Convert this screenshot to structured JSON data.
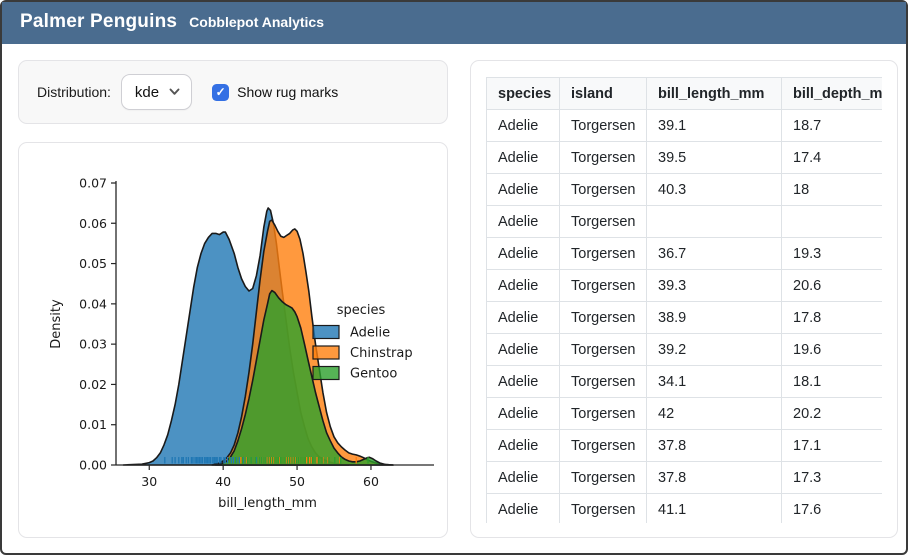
{
  "header": {
    "title": "Palmer Penguins",
    "subtitle": "Cobblepot Analytics"
  },
  "controls": {
    "distribution_label": "Distribution:",
    "distribution_value": "kde",
    "rug_label": "Show rug marks",
    "rug_checked": true,
    "checkbox_glyph": "✓"
  },
  "colors": {
    "header_bg": "#4a6c8f",
    "accent": "#3470e4"
  },
  "table": {
    "columns": [
      "species",
      "island",
      "bill_length_mm",
      "bill_depth_mm"
    ],
    "rows": [
      [
        "Adelie",
        "Torgersen",
        "39.1",
        "18.7"
      ],
      [
        "Adelie",
        "Torgersen",
        "39.5",
        "17.4"
      ],
      [
        "Adelie",
        "Torgersen",
        "40.3",
        "18"
      ],
      [
        "Adelie",
        "Torgersen",
        "",
        ""
      ],
      [
        "Adelie",
        "Torgersen",
        "36.7",
        "19.3"
      ],
      [
        "Adelie",
        "Torgersen",
        "39.3",
        "20.6"
      ],
      [
        "Adelie",
        "Torgersen",
        "38.9",
        "17.8"
      ],
      [
        "Adelie",
        "Torgersen",
        "39.2",
        "19.6"
      ],
      [
        "Adelie",
        "Torgersen",
        "34.1",
        "18.1"
      ],
      [
        "Adelie",
        "Torgersen",
        "42",
        "20.2"
      ],
      [
        "Adelie",
        "Torgersen",
        "37.8",
        "17.1"
      ],
      [
        "Adelie",
        "Torgersen",
        "37.8",
        "17.3"
      ],
      [
        "Adelie",
        "Torgersen",
        "41.1",
        "17.6"
      ]
    ]
  },
  "chart_data": {
    "type": "area",
    "title": "",
    "xlabel": "bill_length_mm",
    "ylabel": "Density",
    "xlim": [
      25.5,
      66.5
    ],
    "ylim": [
      0,
      0.07
    ],
    "xticks": [
      30,
      40,
      50,
      60
    ],
    "yticks": [
      0,
      0.01,
      0.02,
      0.03,
      0.04,
      0.05,
      0.06,
      0.07
    ],
    "grid": false,
    "legend_title": "species",
    "legend_position": "center-right",
    "fill_alpha": 0.8,
    "edge_color": "#1a1a1a",
    "series": [
      {
        "name": "Adelie",
        "color": "#1f77b4",
        "points": [
          [
            26.5,
            0
          ],
          [
            29,
            0.0002
          ],
          [
            30,
            0.0006
          ],
          [
            30.5,
            0.001
          ],
          [
            31,
            0.0018
          ],
          [
            31.5,
            0.003
          ],
          [
            32,
            0.005
          ],
          [
            32.5,
            0.0075
          ],
          [
            33,
            0.011
          ],
          [
            33.5,
            0.015
          ],
          [
            34,
            0.02
          ],
          [
            34.5,
            0.026
          ],
          [
            35,
            0.032
          ],
          [
            35.5,
            0.038
          ],
          [
            36,
            0.044
          ],
          [
            36.5,
            0.049
          ],
          [
            37,
            0.0525
          ],
          [
            37.5,
            0.055
          ],
          [
            38,
            0.0565
          ],
          [
            38.5,
            0.0575
          ],
          [
            39,
            0.0575
          ],
          [
            39.5,
            0.0572
          ],
          [
            40,
            0.0578
          ],
          [
            40.3,
            0.0578
          ],
          [
            40.8,
            0.056
          ],
          [
            41.5,
            0.0525
          ],
          [
            42,
            0.049
          ],
          [
            42.5,
            0.0462
          ],
          [
            43,
            0.0443
          ],
          [
            43.5,
            0.0432
          ],
          [
            44,
            0.0438
          ],
          [
            44.5,
            0.047
          ],
          [
            45,
            0.052
          ],
          [
            45.5,
            0.059
          ],
          [
            45.9,
            0.063
          ],
          [
            46.1,
            0.0638
          ],
          [
            46.4,
            0.0632
          ],
          [
            46.8,
            0.06
          ],
          [
            47.2,
            0.055
          ],
          [
            47.6,
            0.049
          ],
          [
            48,
            0.043
          ],
          [
            48.5,
            0.036
          ],
          [
            49,
            0.029
          ],
          [
            49.5,
            0.023
          ],
          [
            50,
            0.018
          ],
          [
            50.5,
            0.013
          ],
          [
            51,
            0.0095
          ],
          [
            51.5,
            0.0065
          ],
          [
            52,
            0.0045
          ],
          [
            52.5,
            0.003
          ],
          [
            53,
            0.002
          ],
          [
            54,
            0.001
          ],
          [
            55,
            0.0004
          ],
          [
            56,
            0.0001
          ],
          [
            57,
            0
          ]
        ],
        "rug": [
          32.1,
          33.1,
          33.5,
          34.0,
          34.4,
          34.6,
          35.0,
          35.3,
          35.7,
          35.9,
          36.2,
          36.4,
          36.6,
          36.8,
          37.0,
          37.2,
          37.5,
          37.7,
          37.9,
          38.1,
          38.3,
          38.6,
          38.8,
          39.0,
          39.2,
          39.5,
          39.7,
          40.1,
          40.3,
          40.6,
          40.9,
          41.1,
          41.4,
          41.8,
          42.2,
          42.7,
          43.2,
          43.8,
          44.5,
          45.2,
          45.8,
          46.0
        ]
      },
      {
        "name": "Chinstrap",
        "color": "#ff7f0e",
        "points": [
          [
            38.5,
            0
          ],
          [
            39.5,
            0.0005
          ],
          [
            40,
            0.001
          ],
          [
            40.5,
            0.0018
          ],
          [
            41,
            0.003
          ],
          [
            41.5,
            0.005
          ],
          [
            42,
            0.008
          ],
          [
            42.5,
            0.012
          ],
          [
            43,
            0.017
          ],
          [
            43.5,
            0.023
          ],
          [
            44,
            0.03
          ],
          [
            44.5,
            0.038
          ],
          [
            45,
            0.046
          ],
          [
            45.5,
            0.053
          ],
          [
            46,
            0.058
          ],
          [
            46.3,
            0.0605
          ],
          [
            46.6,
            0.0608
          ],
          [
            47,
            0.0595
          ],
          [
            47.4,
            0.058
          ],
          [
            47.8,
            0.0568
          ],
          [
            48.2,
            0.0565
          ],
          [
            48.6,
            0.057
          ],
          [
            49,
            0.0575
          ],
          [
            49.4,
            0.0583
          ],
          [
            49.7,
            0.0586
          ],
          [
            50,
            0.058
          ],
          [
            50.4,
            0.056
          ],
          [
            50.8,
            0.0525
          ],
          [
            51.2,
            0.048
          ],
          [
            51.6,
            0.043
          ],
          [
            52,
            0.037
          ],
          [
            52.5,
            0.03
          ],
          [
            53,
            0.024
          ],
          [
            53.5,
            0.018
          ],
          [
            54,
            0.013
          ],
          [
            54.5,
            0.0095
          ],
          [
            55,
            0.007
          ],
          [
            55.5,
            0.0055
          ],
          [
            56,
            0.0045
          ],
          [
            56.5,
            0.0037
          ],
          [
            57,
            0.003
          ],
          [
            57.5,
            0.0027
          ],
          [
            58,
            0.0025
          ],
          [
            58.5,
            0.0022
          ],
          [
            59,
            0.0018
          ],
          [
            59.5,
            0.0013
          ],
          [
            60,
            0.0009
          ],
          [
            60.5,
            0.0006
          ],
          [
            61,
            0.0003
          ],
          [
            62,
            0.0001
          ],
          [
            63,
            0
          ]
        ],
        "rug": [
          40.9,
          42.4,
          43.2,
          44.9,
          45.2,
          45.5,
          45.9,
          46.2,
          46.5,
          46.8,
          47.0,
          47.3,
          47.6,
          48.1,
          48.5,
          48.9,
          49.2,
          49.5,
          49.8,
          50.2,
          50.5,
          50.8,
          51.3,
          51.7,
          52.0,
          52.7,
          53.5,
          54.2,
          55.8,
          58.0
        ]
      },
      {
        "name": "Gentoo",
        "color": "#2ca02c",
        "points": [
          [
            39,
            0
          ],
          [
            40,
            0.0005
          ],
          [
            40.5,
            0.001
          ],
          [
            41,
            0.002
          ],
          [
            41.5,
            0.0035
          ],
          [
            42,
            0.006
          ],
          [
            42.5,
            0.009
          ],
          [
            43,
            0.0125
          ],
          [
            43.5,
            0.0165
          ],
          [
            44,
            0.021
          ],
          [
            44.5,
            0.026
          ],
          [
            45,
            0.031
          ],
          [
            45.5,
            0.036
          ],
          [
            46,
            0.04
          ],
          [
            46.3,
            0.0425
          ],
          [
            46.6,
            0.0433
          ],
          [
            47,
            0.0428
          ],
          [
            47.5,
            0.0415
          ],
          [
            48,
            0.0405
          ],
          [
            48.5,
            0.0398
          ],
          [
            49,
            0.0393
          ],
          [
            49.3,
            0.039
          ],
          [
            49.7,
            0.038
          ],
          [
            50,
            0.0368
          ],
          [
            50.5,
            0.034
          ],
          [
            51,
            0.03
          ],
          [
            51.5,
            0.026
          ],
          [
            52,
            0.022
          ],
          [
            52.5,
            0.018
          ],
          [
            53,
            0.0145
          ],
          [
            53.5,
            0.011
          ],
          [
            54,
            0.008
          ],
          [
            54.5,
            0.006
          ],
          [
            55,
            0.0042
          ],
          [
            55.5,
            0.003
          ],
          [
            56,
            0.002
          ],
          [
            56.5,
            0.0014
          ],
          [
            57,
            0.001
          ],
          [
            57.5,
            0.0008
          ],
          [
            58,
            0.0008
          ],
          [
            58.5,
            0.001
          ],
          [
            59,
            0.0014
          ],
          [
            59.5,
            0.0018
          ],
          [
            59.8,
            0.0019
          ],
          [
            60.2,
            0.0016
          ],
          [
            60.7,
            0.001
          ],
          [
            61.2,
            0.0005
          ],
          [
            62,
            0.0001
          ],
          [
            63,
            0
          ]
        ],
        "rug": [
          40.9,
          41.7,
          42.6,
          43.3,
          43.8,
          44.4,
          44.9,
          45.2,
          45.5,
          45.8,
          46.1,
          46.4,
          46.7,
          47.0,
          47.3,
          47.5,
          47.8,
          48.1,
          48.4,
          48.7,
          49.0,
          49.3,
          49.6,
          49.9,
          50.2,
          50.5,
          50.8,
          51.1,
          51.5,
          52.1,
          52.9,
          53.4,
          54.3,
          55.1,
          55.9,
          59.6
        ]
      }
    ]
  }
}
